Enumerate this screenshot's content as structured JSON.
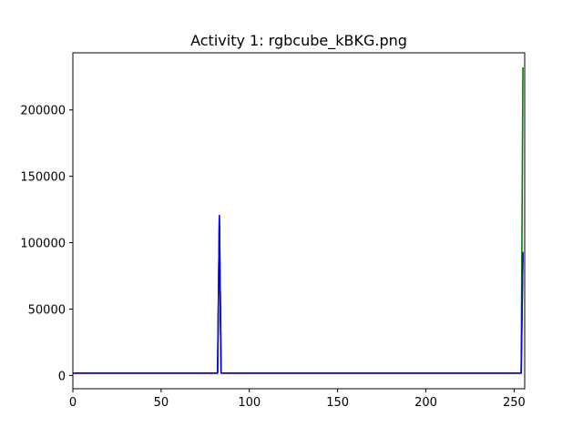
{
  "chart_data": {
    "type": "line",
    "title": "Activity 1: rgbcube_kBKG.png",
    "xlabel": "",
    "ylabel": "",
    "xlim": [
      0,
      256
    ],
    "ylim": [
      -10000,
      243000
    ],
    "xticks": [
      0,
      50,
      100,
      150,
      200,
      250
    ],
    "yticks": [
      0,
      50000,
      100000,
      150000,
      200000
    ],
    "grid": false,
    "legend": "none",
    "series": [
      {
        "color": "#ff0000",
        "points": [
          [
            0,
            1800
          ],
          [
            82,
            1800
          ],
          [
            83,
            119000
          ],
          [
            84,
            1800
          ],
          [
            254,
            1800
          ],
          [
            255,
            91000
          ]
        ]
      },
      {
        "color": "#008000",
        "points": [
          [
            0,
            1800
          ],
          [
            82,
            1800
          ],
          [
            83,
            119000
          ],
          [
            84,
            1800
          ],
          [
            254,
            1800
          ],
          [
            255,
            232000
          ]
        ]
      },
      {
        "color": "#0000ff",
        "points": [
          [
            0,
            1800
          ],
          [
            82,
            1800
          ],
          [
            83,
            120500
          ],
          [
            84,
            1800
          ],
          [
            254,
            1800
          ],
          [
            255,
            93000
          ]
        ]
      }
    ]
  }
}
